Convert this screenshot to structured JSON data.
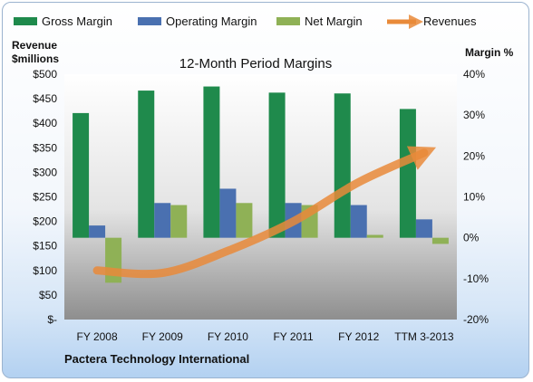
{
  "chart_data": {
    "type": "bar",
    "title": "12-Month Period Margins",
    "footer": "Pactera Technology International",
    "left_axis": {
      "title_line1": "Revenue",
      "title_line2": "$millions",
      "range": [
        0,
        500
      ],
      "ticks": [
        0,
        50,
        100,
        150,
        200,
        250,
        300,
        350,
        400,
        450,
        500
      ],
      "tick_labels": [
        "$-",
        "$50",
        "$100",
        "$150",
        "$200",
        "$250",
        "$300",
        "$350",
        "$400",
        "$450",
        "$500"
      ]
    },
    "right_axis": {
      "title": "Margin %",
      "range": [
        -20,
        40
      ],
      "ticks": [
        -20,
        -10,
        0,
        10,
        20,
        30,
        40
      ],
      "tick_labels": [
        "-20%",
        "-10%",
        "0%",
        "10%",
        "20%",
        "30%",
        "40%"
      ]
    },
    "categories": [
      "FY 2008",
      "FY 2009",
      "FY 2010",
      "FY 2011",
      "FY 2012",
      "TTM 3-2013"
    ],
    "series": [
      {
        "name": "Gross Margin",
        "axis": "right",
        "kind": "bar",
        "color": "#1f8a4c",
        "values": [
          30.5,
          36,
          37,
          35.5,
          35.3,
          31.5
        ]
      },
      {
        "name": "Operating Margin",
        "axis": "right",
        "kind": "bar",
        "color": "#4a70b0",
        "values": [
          3,
          8.5,
          12,
          8.5,
          8,
          4.5
        ]
      },
      {
        "name": "Net Margin",
        "axis": "right",
        "kind": "bar",
        "color": "#8fb156",
        "values": [
          -11,
          8,
          8.5,
          8,
          0.7,
          -1.5
        ]
      },
      {
        "name": "Revenues",
        "axis": "left",
        "kind": "line",
        "color": "#e98a3a",
        "values": [
          100,
          95,
          140,
          200,
          280,
          340
        ]
      }
    ],
    "grid": false,
    "legend_position": "top"
  }
}
